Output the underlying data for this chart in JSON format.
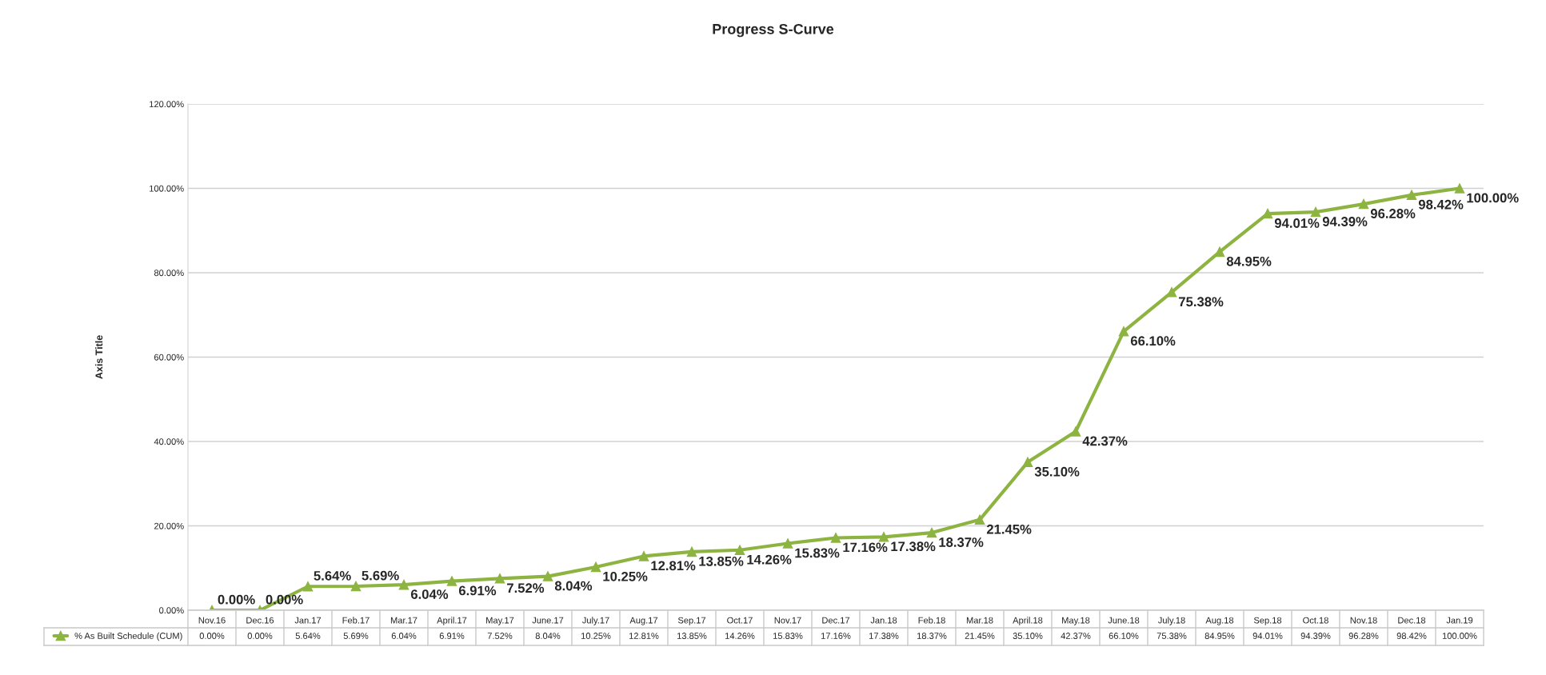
{
  "chart_data": {
    "type": "line",
    "title": "Progress S-Curve",
    "ylabel": "Axis Title",
    "categories": [
      "Nov.16",
      "Dec.16",
      "Jan.17",
      "Feb.17",
      "Mar.17",
      "April.17",
      "May.17",
      "June.17",
      "July.17",
      "Aug.17",
      "Sep.17",
      "Oct.17",
      "Nov.17",
      "Dec.17",
      "Jan.18",
      "Feb.18",
      "Mar.18",
      "April.18",
      "May.18",
      "June.18",
      "July.18",
      "Aug.18",
      "Sep.18",
      "Oct.18",
      "Nov.18",
      "Dec.18",
      "Jan.19"
    ],
    "series": [
      {
        "name": "% As Built Schedule (CUM)",
        "color": "#8db441",
        "values": [
          0.0,
          0.0,
          5.64,
          5.69,
          6.04,
          6.91,
          7.52,
          8.04,
          10.25,
          12.81,
          13.85,
          14.26,
          15.83,
          17.16,
          17.38,
          18.37,
          21.45,
          35.1,
          42.37,
          66.1,
          75.38,
          84.95,
          94.01,
          94.39,
          96.28,
          98.42,
          100.0
        ],
        "value_labels": [
          "0.00%",
          "0.00%",
          "5.64%",
          "5.69%",
          "6.04%",
          "6.91%",
          "7.52%",
          "8.04%",
          "10.25%",
          "12.81%",
          "13.85%",
          "14.26%",
          "15.83%",
          "17.16%",
          "17.38%",
          "18.37%",
          "21.45%",
          "35.10%",
          "42.37%",
          "66.10%",
          "75.38%",
          "84.95%",
          "94.01%",
          "94.39%",
          "96.28%",
          "98.42%",
          "100.00%"
        ]
      }
    ],
    "ylim": [
      0,
      120
    ],
    "yticks": [
      {
        "value": 0,
        "label": "0.00%"
      },
      {
        "value": 20,
        "label": "20.00%"
      },
      {
        "value": 40,
        "label": "40.00%"
      },
      {
        "value": 60,
        "label": "60.00%"
      },
      {
        "value": 80,
        "label": "80.00%"
      },
      {
        "value": 100,
        "label": "100.00%"
      },
      {
        "value": 120,
        "label": "120.00%"
      }
    ],
    "grid": "y",
    "legend": "bottom left",
    "marker": "triangle",
    "line_style": "solid"
  }
}
